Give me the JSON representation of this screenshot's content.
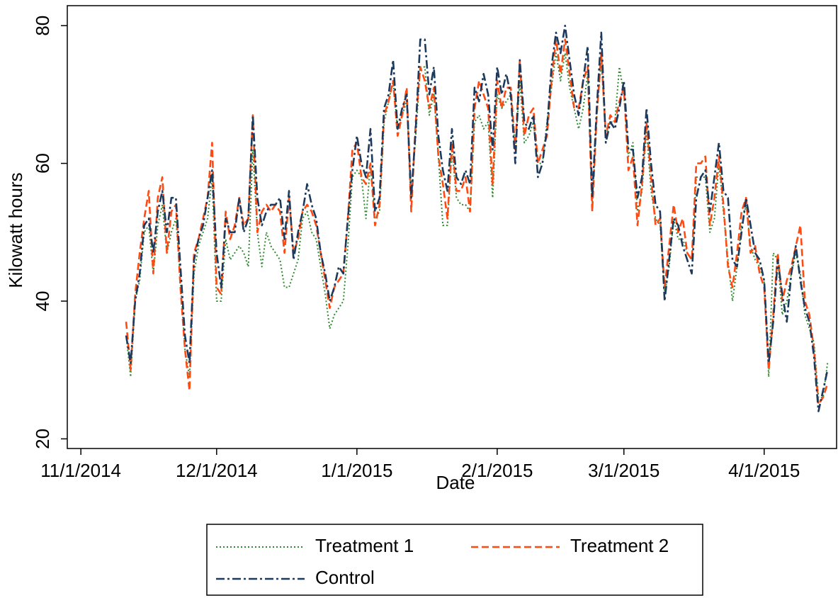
{
  "chart_data": {
    "type": "line",
    "x_label": "Date",
    "y_label": "Kilowatt hours",
    "x": [
      "2014-11-11",
      "2014-11-12",
      "2014-11-13",
      "2014-11-14",
      "2014-11-15",
      "2014-11-16",
      "2014-11-17",
      "2014-11-18",
      "2014-11-19",
      "2014-11-20",
      "2014-11-21",
      "2014-11-22",
      "2014-11-23",
      "2014-11-24",
      "2014-11-25",
      "2014-11-26",
      "2014-11-27",
      "2014-11-28",
      "2014-11-29",
      "2014-11-30",
      "2014-12-01",
      "2014-12-02",
      "2014-12-03",
      "2014-12-04",
      "2014-12-05",
      "2014-12-06",
      "2014-12-07",
      "2014-12-08",
      "2014-12-09",
      "2014-12-10",
      "2014-12-11",
      "2014-12-12",
      "2014-12-13",
      "2014-12-14",
      "2014-12-15",
      "2014-12-16",
      "2014-12-17",
      "2014-12-18",
      "2014-12-19",
      "2014-12-20",
      "2014-12-21",
      "2014-12-22",
      "2014-12-23",
      "2014-12-24",
      "2014-12-25",
      "2014-12-26",
      "2014-12-27",
      "2014-12-28",
      "2014-12-29",
      "2014-12-30",
      "2014-12-31",
      "2015-01-01",
      "2015-01-02",
      "2015-01-03",
      "2015-01-04",
      "2015-01-05",
      "2015-01-06",
      "2015-01-07",
      "2015-01-08",
      "2015-01-09",
      "2015-01-10",
      "2015-01-11",
      "2015-01-12",
      "2015-01-13",
      "2015-01-14",
      "2015-01-15",
      "2015-01-16",
      "2015-01-17",
      "2015-01-18",
      "2015-01-19",
      "2015-01-20",
      "2015-01-21",
      "2015-01-22",
      "2015-01-23",
      "2015-01-24",
      "2015-01-25",
      "2015-01-26",
      "2015-01-27",
      "2015-01-28",
      "2015-01-29",
      "2015-01-30",
      "2015-01-31",
      "2015-02-01",
      "2015-02-02",
      "2015-02-03",
      "2015-02-04",
      "2015-02-05",
      "2015-02-06",
      "2015-02-07",
      "2015-02-08",
      "2015-02-09",
      "2015-02-10",
      "2015-02-11",
      "2015-02-12",
      "2015-02-13",
      "2015-02-14",
      "2015-02-15",
      "2015-02-16",
      "2015-02-17",
      "2015-02-18",
      "2015-02-19",
      "2015-02-20",
      "2015-02-21",
      "2015-02-22",
      "2015-02-23",
      "2015-02-24",
      "2015-02-25",
      "2015-02-26",
      "2015-02-27",
      "2015-02-28",
      "2015-03-01",
      "2015-03-02",
      "2015-03-03",
      "2015-03-04",
      "2015-03-05",
      "2015-03-06",
      "2015-03-07",
      "2015-03-08",
      "2015-03-09",
      "2015-03-10",
      "2015-03-11",
      "2015-03-12",
      "2015-03-13",
      "2015-03-14",
      "2015-03-15",
      "2015-03-16",
      "2015-03-17",
      "2015-03-18",
      "2015-03-19",
      "2015-03-20",
      "2015-03-21",
      "2015-03-22",
      "2015-03-23",
      "2015-03-24",
      "2015-03-25",
      "2015-03-26",
      "2015-03-27",
      "2015-03-28",
      "2015-03-29",
      "2015-03-30",
      "2015-03-31",
      "2015-04-01",
      "2015-04-02",
      "2015-04-03",
      "2015-04-04",
      "2015-04-05",
      "2015-04-06",
      "2015-04-07",
      "2015-04-08",
      "2015-04-09",
      "2015-04-10",
      "2015-04-11",
      "2015-04-12",
      "2015-04-13",
      "2015-04-14",
      "2015-04-15"
    ],
    "series": [
      {
        "name": "Treatment 1",
        "color": "#2f8a2f",
        "style": "dotted",
        "values": [
          35,
          29,
          40,
          43,
          50,
          51,
          44,
          51,
          54,
          47,
          50,
          52,
          43,
          33,
          29,
          44,
          48,
          50,
          52,
          58,
          40,
          40,
          49,
          46,
          47,
          48,
          47,
          45,
          62,
          50,
          45,
          50,
          48,
          47,
          46,
          42,
          42,
          44,
          46,
          52,
          53,
          50,
          49,
          45,
          41,
          36,
          38,
          39,
          40,
          48,
          58,
          59,
          58,
          52,
          60,
          52,
          53,
          66,
          69,
          72,
          65,
          67,
          69,
          55,
          64,
          74,
          74,
          67,
          70,
          61,
          51,
          51,
          62,
          55,
          54,
          54,
          53,
          66,
          67,
          65,
          66,
          55,
          70,
          68,
          69,
          70,
          62,
          72,
          63,
          64,
          66,
          60,
          60,
          66,
          71,
          76,
          72,
          76,
          71,
          68,
          65,
          68,
          73,
          54,
          67,
          75,
          64,
          66,
          66,
          74,
          70,
          61,
          63,
          53,
          56,
          65,
          56,
          52,
          51,
          41,
          45,
          52,
          49,
          49,
          47,
          46,
          58,
          58,
          58,
          50,
          52,
          60,
          53,
          46,
          40,
          45,
          51,
          54,
          48,
          46,
          45,
          43,
          29,
          47,
          46,
          38,
          40,
          44,
          47,
          44,
          38,
          36,
          34,
          26,
          26,
          31
        ]
      },
      {
        "name": "Treatment 2",
        "color": "#ff4a12",
        "style": "dashed",
        "values": [
          37,
          30,
          41,
          47,
          52,
          56,
          44,
          55,
          58,
          47,
          53,
          54,
          42,
          33,
          27,
          47,
          49,
          52,
          55,
          63,
          42,
          41,
          53,
          49,
          51,
          55,
          51,
          52,
          67,
          50,
          53,
          54,
          53,
          54,
          53,
          47,
          55,
          47,
          49,
          53,
          54,
          53,
          51,
          47,
          43,
          39,
          42,
          43,
          44,
          52,
          62,
          63,
          58,
          57,
          60,
          51,
          54,
          67,
          69,
          72,
          64,
          67,
          71,
          53,
          66,
          74,
          72,
          68,
          71,
          61,
          57,
          52,
          63,
          56,
          56,
          58,
          53,
          68,
          72,
          70,
          68,
          57,
          72,
          68,
          71,
          71,
          62,
          75,
          64,
          67,
          68,
          60,
          62,
          64,
          72,
          78,
          73,
          78,
          73,
          68,
          68,
          72,
          74,
          53,
          67,
          76,
          64,
          67,
          66,
          69,
          71,
          59,
          61,
          51,
          57,
          66,
          58,
          51,
          52,
          42,
          48,
          54,
          50,
          52,
          47,
          46,
          60,
          60,
          61,
          51,
          55,
          61,
          54,
          45,
          42,
          47,
          53,
          55,
          47,
          48,
          44,
          42,
          30,
          38,
          47,
          40,
          43,
          45,
          48,
          51,
          40,
          38,
          33,
          25,
          26,
          28
        ]
      },
      {
        "name": "Control",
        "color": "#1c3a5e",
        "style": "dashdot",
        "values": [
          35,
          31,
          40,
          44,
          51,
          52,
          47,
          53,
          56,
          50,
          55,
          55,
          45,
          35,
          31,
          46,
          49,
          51,
          55,
          59,
          47,
          42,
          52,
          50,
          50,
          55,
          50,
          52,
          67,
          55,
          51,
          53,
          54,
          54,
          55,
          49,
          56,
          46,
          50,
          53,
          57,
          54,
          52,
          47,
          44,
          40,
          42,
          45,
          44,
          52,
          59,
          64,
          60,
          58,
          65,
          53,
          55,
          68,
          70,
          75,
          65,
          68,
          70,
          55,
          65,
          78,
          78,
          70,
          74,
          64,
          59,
          56,
          65,
          58,
          57,
          59,
          57,
          71,
          69,
          73,
          70,
          62,
          74,
          70,
          73,
          70,
          60,
          75,
          66,
          65,
          67,
          58,
          60,
          65,
          74,
          79,
          76,
          80,
          75,
          70,
          67,
          72,
          77,
          55,
          68,
          79,
          63,
          66,
          65,
          68,
          72,
          62,
          62,
          55,
          58,
          68,
          60,
          54,
          53,
          40,
          46,
          52,
          51,
          48,
          46,
          44,
          55,
          58,
          59,
          53,
          58,
          63,
          56,
          55,
          46,
          45,
          50,
          55,
          51,
          47,
          46,
          43,
          31,
          37,
          46,
          41,
          37,
          44,
          48,
          43,
          39,
          37,
          32,
          24,
          27,
          30
        ]
      }
    ],
    "xlim": [
      "2014-10-29",
      "2015-04-17"
    ],
    "xticks": [
      {
        "value": "2014-11-01",
        "label": "11/1/2014"
      },
      {
        "value": "2014-12-01",
        "label": "12/1/2014"
      },
      {
        "value": "2015-01-01",
        "label": "1/1/2015"
      },
      {
        "value": "2015-02-01",
        "label": "2/1/2015"
      },
      {
        "value": "2015-03-01",
        "label": "3/1/2015"
      },
      {
        "value": "2015-04-01",
        "label": "4/1/2015"
      }
    ],
    "ylim": [
      18.6,
      82.9
    ],
    "yticks": [
      20,
      40,
      60,
      80
    ],
    "grid": false,
    "legend": "bottom"
  }
}
